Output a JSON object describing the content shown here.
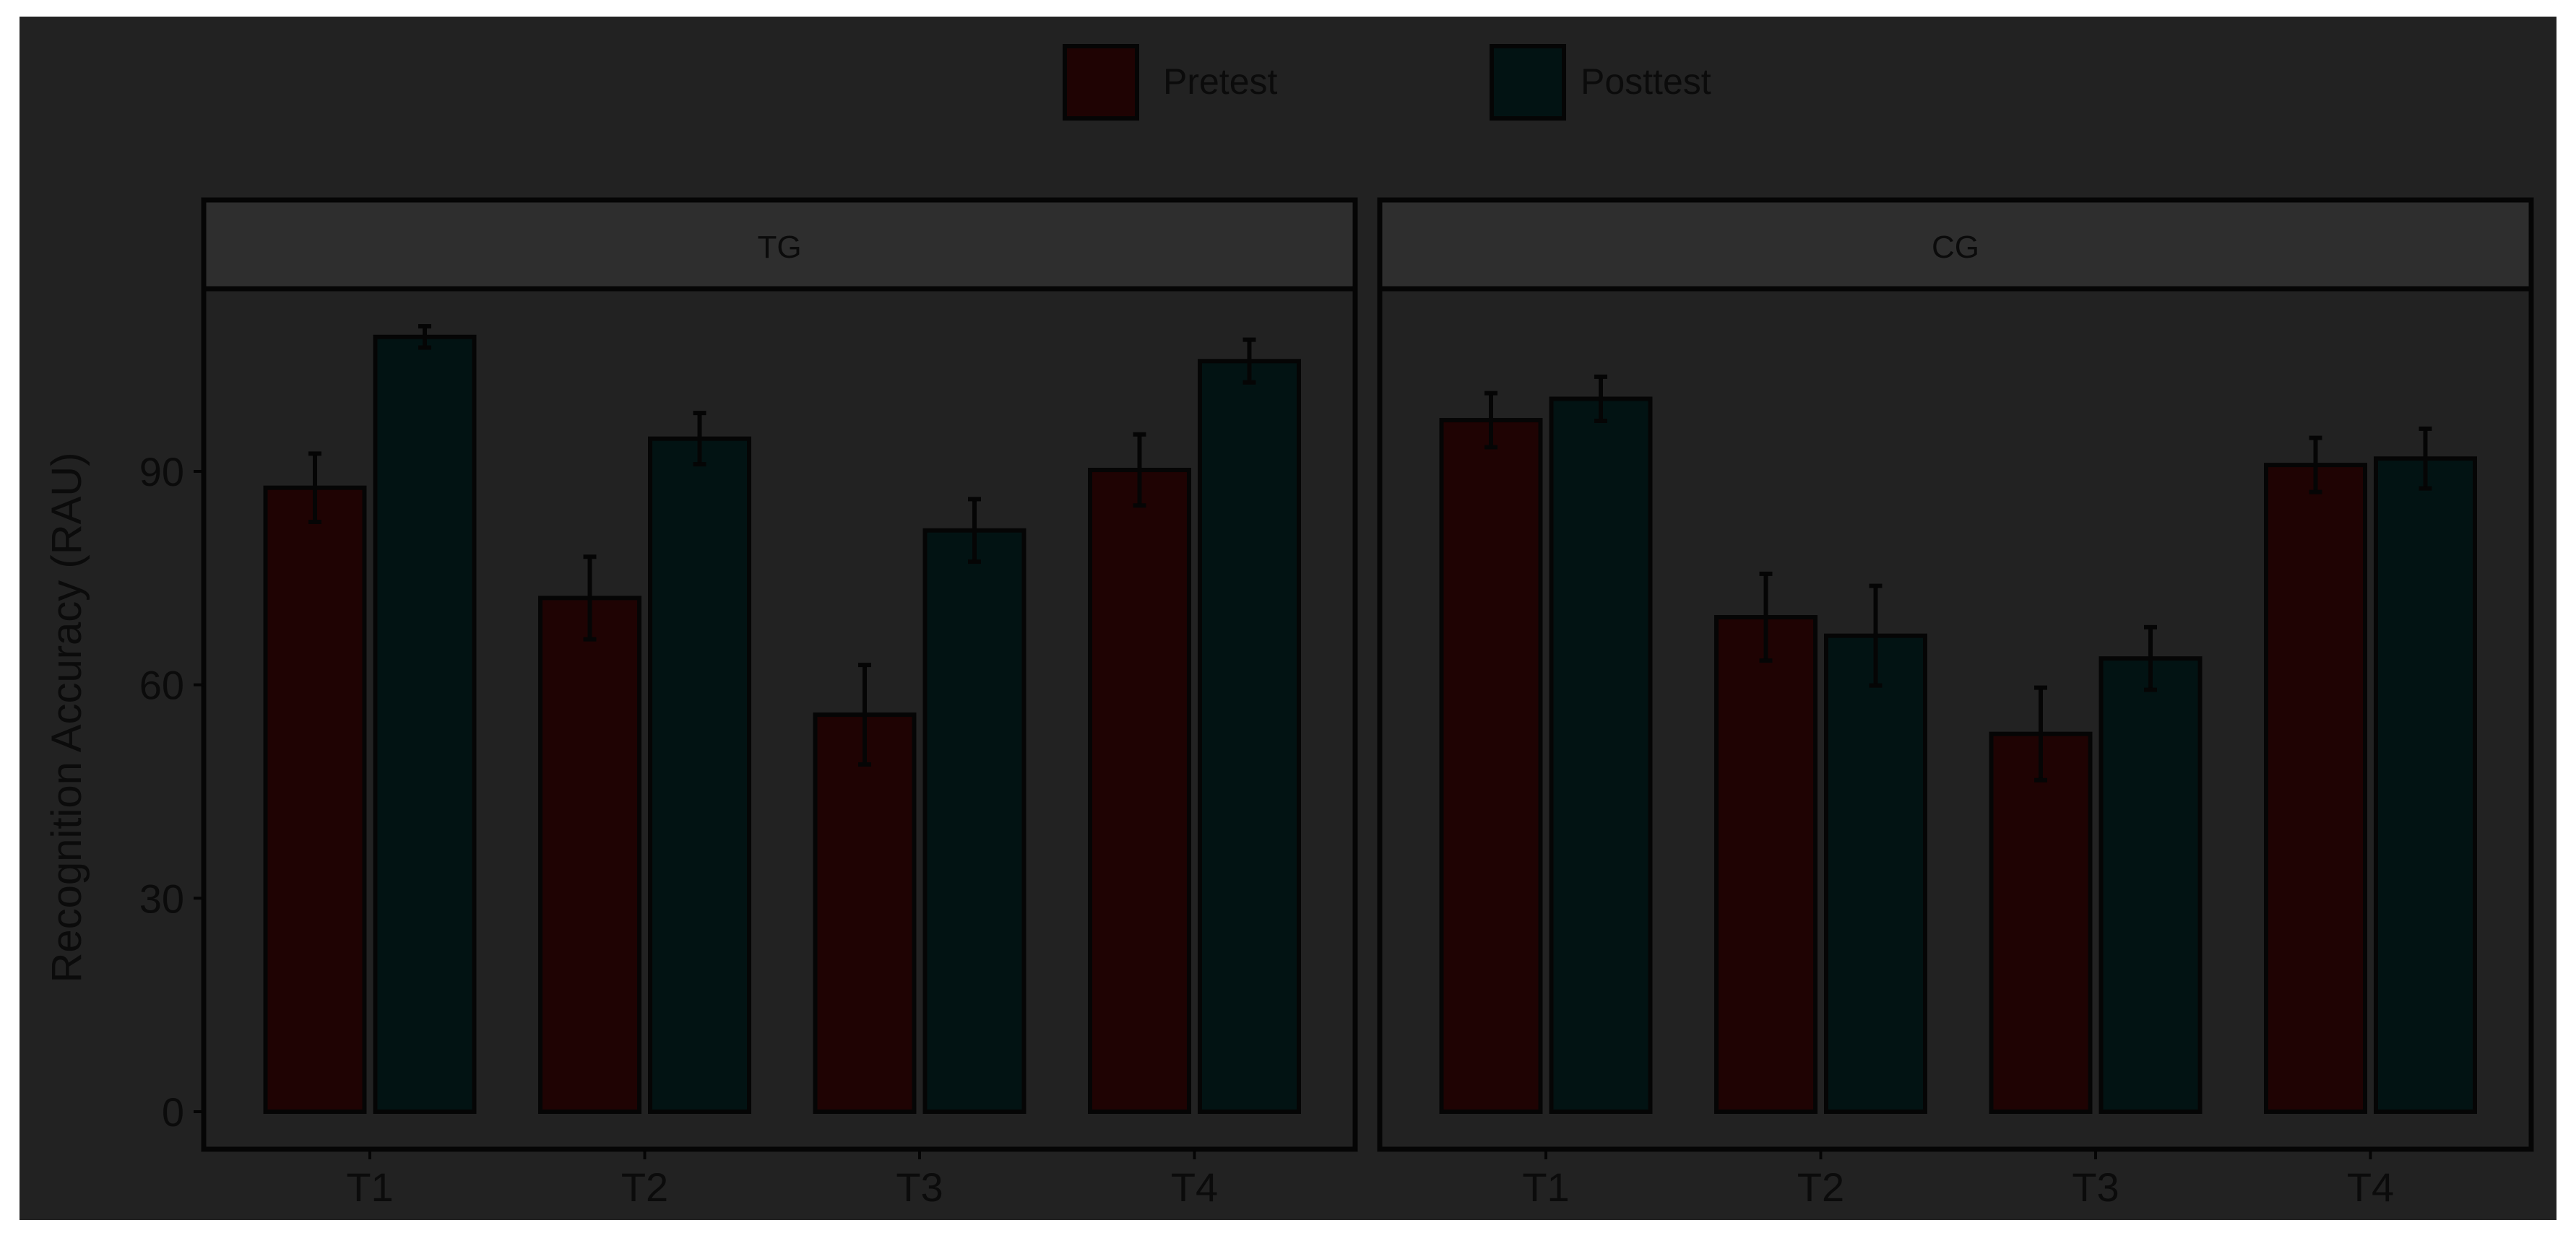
{
  "colors": {
    "background": "#222222",
    "strip": "#2e2e2e",
    "pretest": "#1f0303",
    "posttest": "#021313",
    "ink": "#0b0b0b"
  },
  "chart_data": {
    "type": "bar",
    "ylabel": "Recognition Accuracy (RAU)",
    "xlabel": "",
    "ylim": [
      0,
      115
    ],
    "yticks": [
      0,
      30,
      60,
      90
    ],
    "grid": false,
    "legend_position": "top",
    "categories": [
      "T1",
      "T2",
      "T3",
      "T4"
    ],
    "legend": [
      "Pretest",
      "Posttest"
    ],
    "panels": [
      {
        "name": "TG",
        "series": [
          {
            "name": "Pretest",
            "values": [
              87.7,
              72.2,
              55.8,
              90.2
            ],
            "errors": [
              4.8,
              5.8,
              7.0,
              5.0
            ]
          },
          {
            "name": "Posttest",
            "values": [
              108.9,
              94.6,
              81.7,
              105.5
            ],
            "errors": [
              1.5,
              3.6,
              4.4,
              3.0
            ]
          }
        ]
      },
      {
        "name": "CG",
        "series": [
          {
            "name": "Pretest",
            "values": [
              97.2,
              69.5,
              53.1,
              90.9
            ],
            "errors": [
              3.8,
              6.1,
              6.5,
              3.8
            ]
          },
          {
            "name": "Posttest",
            "values": [
              100.2,
              66.9,
              63.7,
              91.8
            ],
            "errors": [
              3.1,
              7.0,
              4.4,
              4.2
            ]
          }
        ]
      }
    ]
  }
}
